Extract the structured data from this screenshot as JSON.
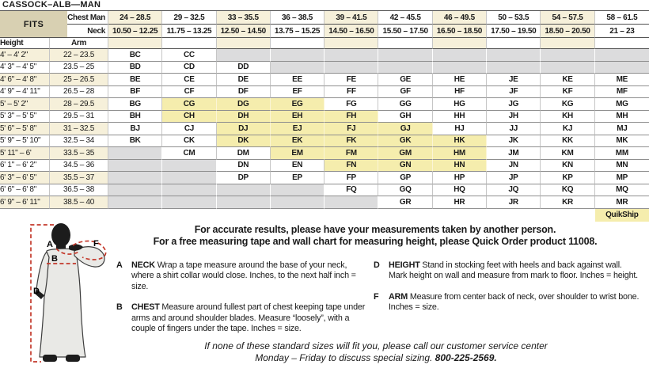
{
  "title": "CASSOCK–ALB—MAN",
  "colors": {
    "stripe_cream": "#f6f0da",
    "fits_tan": "#d8d0b2",
    "quikship_yellow": "#f5edad",
    "unavailable_gray": "#dcdcdd",
    "measure_line_red": "#c4392b"
  },
  "table": {
    "fits_label": "FITS",
    "chest_label": "Chest Man",
    "neck_label": "Neck",
    "height_label": "Height",
    "arm_label": "Arm",
    "quikship_label": "QuikShip",
    "chest_ranges": [
      "24 – 28.5",
      "29 – 32.5",
      "33 – 35.5",
      "36 – 38.5",
      "39 – 41.5",
      "42 – 45.5",
      "46 – 49.5",
      "50 – 53.5",
      "54 – 57.5",
      "58 – 61.5"
    ],
    "neck_ranges": [
      "10.50 – 12.25",
      "11.75 – 13.25",
      "12.50 – 14.50",
      "13.75 – 15.25",
      "14.50 – 16.50",
      "15.50 – 17.50",
      "16.50 – 18.50",
      "17.50 – 19.50",
      "18.50 – 20.50",
      "21 – 23"
    ],
    "rows": [
      {
        "height": "4' – 4' 2\"",
        "arm": "22 – 23.5",
        "codes": [
          "BC",
          "CC",
          "",
          "",
          "",
          "",
          "",
          "",
          "",
          ""
        ]
      },
      {
        "height": "4' 3\" – 4' 5\"",
        "arm": "23.5 – 25",
        "codes": [
          "BD",
          "CD",
          "DD",
          "",
          "",
          "",
          "",
          "",
          "",
          ""
        ]
      },
      {
        "height": "4' 6\" – 4' 8\"",
        "arm": "25 – 26.5",
        "codes": [
          "BE",
          "CE",
          "DE",
          "EE",
          "FE",
          "GE",
          "HE",
          "JE",
          "KE",
          "ME"
        ]
      },
      {
        "height": "4' 9\" – 4' 11\"",
        "arm": "26.5 – 28",
        "codes": [
          "BF",
          "CF",
          "DF",
          "EF",
          "FF",
          "GF",
          "HF",
          "JF",
          "KF",
          "MF"
        ]
      },
      {
        "height": "5' – 5' 2\"",
        "arm": "28 – 29.5",
        "codes": [
          "BG",
          "CG",
          "DG",
          "EG",
          "FG",
          "GG",
          "HG",
          "JG",
          "KG",
          "MG"
        ]
      },
      {
        "height": "5' 3\" – 5' 5\"",
        "arm": "29.5 – 31",
        "codes": [
          "BH",
          "CH",
          "DH",
          "EH",
          "FH",
          "GH",
          "HH",
          "JH",
          "KH",
          "MH"
        ]
      },
      {
        "height": "5' 6\" – 5' 8\"",
        "arm": "31 – 32.5",
        "codes": [
          "BJ",
          "CJ",
          "DJ",
          "EJ",
          "FJ",
          "GJ",
          "HJ",
          "JJ",
          "KJ",
          "MJ"
        ]
      },
      {
        "height": "5' 9\" – 5' 10\"",
        "arm": "32.5 – 34",
        "codes": [
          "BK",
          "CK",
          "DK",
          "EK",
          "FK",
          "GK",
          "HK",
          "JK",
          "KK",
          "MK"
        ]
      },
      {
        "height": "5' 11\" – 6'",
        "arm": "33.5 – 35",
        "codes": [
          "",
          "CM",
          "DM",
          "EM",
          "FM",
          "GM",
          "HM",
          "JM",
          "KM",
          "MM"
        ]
      },
      {
        "height": "6' 1\" – 6' 2\"",
        "arm": "34.5 – 36",
        "codes": [
          "",
          "",
          "DN",
          "EN",
          "FN",
          "GN",
          "HN",
          "JN",
          "KN",
          "MN"
        ]
      },
      {
        "height": "6' 3\" – 6' 5\"",
        "arm": "35.5 – 37",
        "codes": [
          "",
          "",
          "DP",
          "EP",
          "FP",
          "GP",
          "HP",
          "JP",
          "KP",
          "MP"
        ]
      },
      {
        "height": "6' 6\" – 6' 8\"",
        "arm": "36.5 – 38",
        "codes": [
          "",
          "",
          "",
          "",
          "FQ",
          "GQ",
          "HQ",
          "JQ",
          "KQ",
          "MQ"
        ]
      },
      {
        "height": "6' 9\" – 6' 11\"",
        "arm": "38.5 – 40",
        "codes": [
          "",
          "",
          "",
          "",
          "",
          "GR",
          "HR",
          "JR",
          "KR",
          "MR"
        ]
      }
    ],
    "quikship_codes": [
      "CG",
      "DG",
      "EG",
      "CH",
      "DH",
      "EH",
      "FH",
      "DJ",
      "EJ",
      "FJ",
      "GJ",
      "DK",
      "EK",
      "FK",
      "GK",
      "HK",
      "EM",
      "FM",
      "GM",
      "HM",
      "FN",
      "GN",
      "HN"
    ]
  },
  "notes": {
    "line1": "For accurate results, please have your measurements taken by another person.",
    "line2": "For a free measuring tape and wall chart for measuring height, please Quick Order product 11008."
  },
  "instructions": {
    "left": [
      {
        "letter": "A",
        "term": "NECK",
        "text": "Wrap a tape measure around the base of your neck, where a shirt collar would close. Inches, to the next half inch = size."
      },
      {
        "letter": "B",
        "term": "CHEST",
        "text": "Measure around fullest part of chest keeping tape under arms and around shoulder blades. Measure “loosely”, with a couple of fingers under the tape. Inches = size."
      }
    ],
    "right": [
      {
        "letter": "D",
        "term": "HEIGHT",
        "text": "Stand in stocking feet with heels and back against wall. Mark height on wall and measure from mark to floor. Inches = height."
      },
      {
        "letter": "F",
        "term": "ARM",
        "text": "Measure from center back of neck, over shoulder to wrist bone. Inches = size."
      }
    ]
  },
  "figure": {
    "labels": {
      "a": "A",
      "b": "B",
      "d": "D",
      "f": "F"
    }
  },
  "footer": {
    "line1": "If none of these standard sizes will fit you, please call our customer service center",
    "line2_prefix": "Monday – Friday to discuss special sizing. ",
    "phone": "800-225-2569."
  }
}
